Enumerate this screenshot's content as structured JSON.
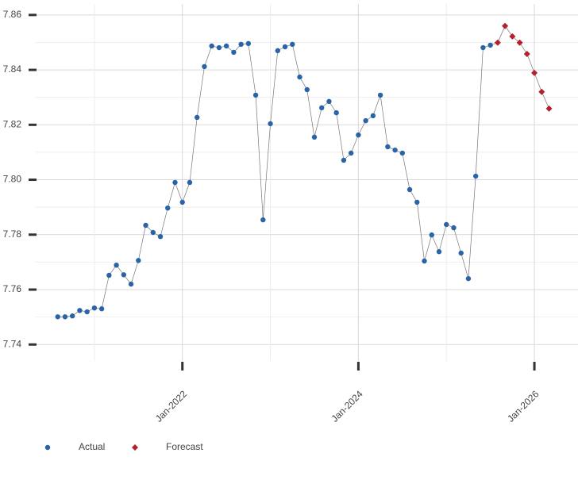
{
  "chart_data": {
    "type": "line",
    "xlim": [
      "May-2020",
      "May-2026"
    ],
    "xticks": [
      "Jan-2022",
      "Jan-2024",
      "Jan-2026"
    ],
    "ylim": [
      7.734,
      7.864
    ],
    "yticks": [
      7.74,
      7.76,
      7.78,
      {
        "value": 7.8,
        "label": "7.80"
      },
      7.82,
      7.84,
      7.86
    ],
    "grid": true,
    "legend": "bottom-left",
    "series": [
      {
        "name": "Actual",
        "color": "#2a64a8",
        "marker": "circle",
        "x": [
          "Aug-2020",
          "Sep-2020",
          "Oct-2020",
          "Nov-2020",
          "Dec-2020",
          "Jan-2021",
          "Feb-2021",
          "Mar-2021",
          "Apr-2021",
          "May-2021",
          "Jun-2021",
          "Jul-2021",
          "Aug-2021",
          "Sep-2021",
          "Oct-2021",
          "Nov-2021",
          "Dec-2021",
          "Jan-2022",
          "Feb-2022",
          "Mar-2022",
          "Apr-2022",
          "May-2022",
          "Jun-2022",
          "Jul-2022",
          "Aug-2022",
          "Sep-2022",
          "Oct-2022",
          "Nov-2022",
          "Dec-2022",
          "Jan-2023",
          "Feb-2023",
          "Mar-2023",
          "Apr-2023",
          "May-2023",
          "Jun-2023",
          "Jul-2023",
          "Aug-2023",
          "Sep-2023",
          "Oct-2023",
          "Nov-2023",
          "Dec-2023",
          "Jan-2024",
          "Feb-2024",
          "Mar-2024",
          "Apr-2024",
          "May-2024",
          "Jun-2024",
          "Jul-2024",
          "Aug-2024",
          "Sep-2024",
          "Oct-2024",
          "Nov-2024",
          "Dec-2024",
          "Jan-2025",
          "Feb-2025",
          "Mar-2025",
          "Apr-2025",
          "May-2025",
          "Jun-2025",
          "Jul-2025"
        ],
        "values": [
          7.7501,
          7.7501,
          7.7504,
          7.7524,
          7.7519,
          7.7533,
          7.753,
          7.7652,
          7.7689,
          7.7654,
          7.762,
          7.7706,
          7.7834,
          7.7808,
          7.7793,
          7.7897,
          7.799,
          7.7918,
          7.799,
          7.8227,
          7.8412,
          7.8487,
          7.8481,
          7.8487,
          7.8464,
          7.8493,
          7.8496,
          7.8308,
          7.7854,
          7.8204,
          7.847,
          7.8484,
          7.8493,
          7.8374,
          7.8328,
          7.8155,
          7.8262,
          7.8285,
          7.8244,
          7.8071,
          7.8097,
          7.8163,
          7.8215,
          7.8233,
          7.8308,
          7.812,
          7.8108,
          7.8097,
          7.7964,
          7.7918,
          7.7704,
          7.7799,
          7.7738,
          7.7837,
          7.7825,
          7.7733,
          7.764,
          7.8013,
          7.8481,
          7.849
        ]
      },
      {
        "name": "Forecast",
        "color": "#b5202e",
        "marker": "diamond",
        "x": [
          "Aug-2025",
          "Sep-2025",
          "Oct-2025",
          "Nov-2025",
          "Dec-2025",
          "Jan-2026",
          "Feb-2026",
          "Mar-2026"
        ],
        "values": [
          7.8499,
          7.856,
          7.8522,
          7.8499,
          7.8458,
          7.8389,
          7.832,
          7.8259
        ]
      }
    ]
  }
}
